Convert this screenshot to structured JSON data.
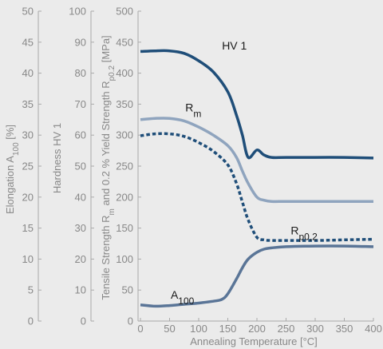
{
  "chart_data": {
    "type": "line",
    "xlabel": "Annealing Temperature [°C]",
    "x_ticks": [
      0,
      50,
      100,
      150,
      200,
      250,
      300,
      350,
      400
    ],
    "xlim": [
      0,
      400
    ],
    "grid": false,
    "axes": {
      "elongation": {
        "label_main": "Elongation A",
        "label_sub": "100",
        "label_tail": " [%]",
        "ylim": [
          0,
          50
        ],
        "ticks": [
          0,
          5,
          10,
          15,
          20,
          25,
          30,
          35,
          40,
          45,
          50
        ]
      },
      "hardness": {
        "label": "Hardness HV 1",
        "ylim": [
          0,
          100
        ],
        "ticks": [
          0,
          10,
          20,
          30,
          40,
          50,
          60,
          70,
          80,
          90,
          100
        ]
      },
      "strength": {
        "label_a": "Tensile Strength R",
        "label_a_sub": "m",
        "label_b": " and 0.2 % Yield Strength R",
        "label_b_sub": "p0.2",
        "label_c": " [MPa]",
        "ylim": [
          0,
          500
        ],
        "ticks": [
          0,
          50,
          100,
          150,
          200,
          250,
          300,
          350,
          400,
          450,
          500
        ]
      }
    },
    "series": [
      {
        "name": "HV 1",
        "label_main": "HV 1",
        "label_sub": "",
        "axis": "strength",
        "color": "#1f4e79",
        "dashed": false,
        "label_at": [
          140,
          438
        ],
        "points": [
          [
            0,
            435
          ],
          [
            25,
            436
          ],
          [
            50,
            436
          ],
          [
            75,
            432
          ],
          [
            100,
            420
          ],
          [
            125,
            402
          ],
          [
            150,
            370
          ],
          [
            165,
            332
          ],
          [
            175,
            300
          ],
          [
            185,
            264
          ],
          [
            200,
            276
          ],
          [
            212,
            268
          ],
          [
            225,
            264
          ],
          [
            250,
            264
          ],
          [
            300,
            264
          ],
          [
            350,
            264
          ],
          [
            400,
            263
          ]
        ]
      },
      {
        "name": "Rm",
        "label_main": "R",
        "label_sub": "m",
        "axis": "strength",
        "color": "#8fa4be",
        "dashed": false,
        "label_at": [
          77,
          338
        ],
        "points": [
          [
            0,
            325
          ],
          [
            25,
            327
          ],
          [
            50,
            327
          ],
          [
            75,
            323
          ],
          [
            100,
            313
          ],
          [
            125,
            300
          ],
          [
            150,
            283
          ],
          [
            165,
            264
          ],
          [
            175,
            242
          ],
          [
            185,
            222
          ],
          [
            200,
            200
          ],
          [
            212,
            195
          ],
          [
            225,
            193
          ],
          [
            250,
            193
          ],
          [
            300,
            193
          ],
          [
            350,
            193
          ],
          [
            400,
            193
          ]
        ]
      },
      {
        "name": "Rp0,2",
        "label_main": "R",
        "label_sub": "p0,2",
        "axis": "strength",
        "color": "#1f4e79",
        "dashed": true,
        "label_at": [
          258,
          140
        ],
        "points": [
          [
            0,
            299
          ],
          [
            25,
            302
          ],
          [
            50,
            302
          ],
          [
            75,
            298
          ],
          [
            100,
            288
          ],
          [
            125,
            274
          ],
          [
            150,
            252
          ],
          [
            165,
            222
          ],
          [
            175,
            192
          ],
          [
            185,
            163
          ],
          [
            200,
            135
          ],
          [
            212,
            131
          ],
          [
            225,
            130
          ],
          [
            250,
            130
          ],
          [
            300,
            130
          ],
          [
            350,
            131
          ],
          [
            400,
            132
          ]
        ]
      },
      {
        "name": "A100",
        "label_main": "A",
        "label_sub": "100",
        "axis": "strength",
        "color": "#5a7597",
        "dashed": false,
        "label_at": [
          52,
          36
        ],
        "points": [
          [
            0,
            26
          ],
          [
            25,
            24
          ],
          [
            50,
            25
          ],
          [
            75,
            27
          ],
          [
            100,
            29
          ],
          [
            125,
            32
          ],
          [
            140,
            35
          ],
          [
            150,
            44
          ],
          [
            165,
            68
          ],
          [
            175,
            86
          ],
          [
            185,
            100
          ],
          [
            200,
            111
          ],
          [
            212,
            116
          ],
          [
            225,
            118
          ],
          [
            250,
            120
          ],
          [
            300,
            121
          ],
          [
            350,
            121
          ],
          [
            400,
            120
          ]
        ]
      }
    ]
  }
}
